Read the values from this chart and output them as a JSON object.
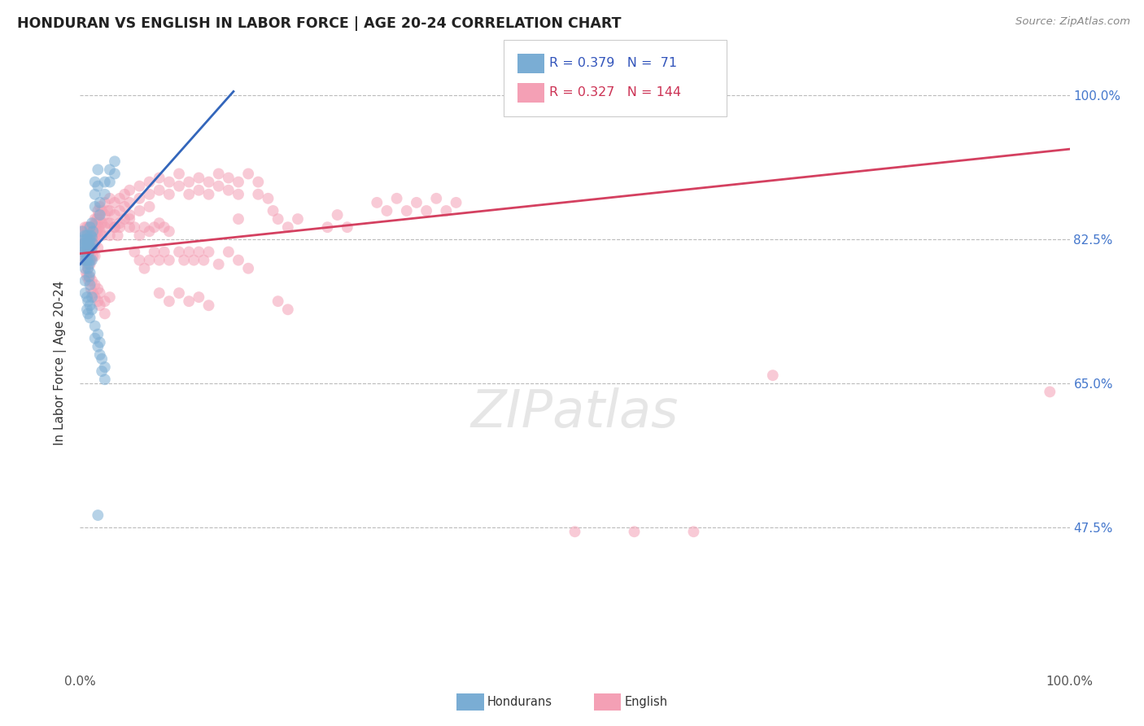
{
  "title": "HONDURAN VS ENGLISH IN LABOR FORCE | AGE 20-24 CORRELATION CHART",
  "source": "Source: ZipAtlas.com",
  "ylabel": "In Labor Force | Age 20-24",
  "xlim": [
    0.0,
    1.0
  ],
  "ylim": [
    0.3,
    1.05
  ],
  "ytick_vals": [
    0.475,
    0.65,
    0.825,
    1.0
  ],
  "ytick_labels": [
    "47.5%",
    "65.0%",
    "82.5%",
    "100.0%"
  ],
  "blue_R": 0.379,
  "blue_N": 71,
  "pink_R": 0.327,
  "pink_N": 144,
  "blue_color": "#7aadd4",
  "pink_color": "#f4a0b5",
  "blue_line_color": "#3366bb",
  "pink_line_color": "#d44060",
  "blue_line": [
    [
      0.0,
      0.795
    ],
    [
      0.155,
      1.005
    ]
  ],
  "pink_line": [
    [
      0.0,
      0.808
    ],
    [
      1.0,
      0.935
    ]
  ],
  "blue_scatter": [
    [
      0.002,
      0.835
    ],
    [
      0.003,
      0.82
    ],
    [
      0.003,
      0.81
    ],
    [
      0.004,
      0.825
    ],
    [
      0.004,
      0.815
    ],
    [
      0.004,
      0.8
    ],
    [
      0.005,
      0.83
    ],
    [
      0.005,
      0.82
    ],
    [
      0.005,
      0.81
    ],
    [
      0.006,
      0.825
    ],
    [
      0.006,
      0.815
    ],
    [
      0.006,
      0.8
    ],
    [
      0.007,
      0.83
    ],
    [
      0.007,
      0.82
    ],
    [
      0.007,
      0.81
    ],
    [
      0.007,
      0.8
    ],
    [
      0.008,
      0.825
    ],
    [
      0.008,
      0.815
    ],
    [
      0.008,
      0.8
    ],
    [
      0.008,
      0.79
    ],
    [
      0.009,
      0.82
    ],
    [
      0.009,
      0.81
    ],
    [
      0.009,
      0.795
    ],
    [
      0.009,
      0.78
    ],
    [
      0.01,
      0.84
    ],
    [
      0.01,
      0.825
    ],
    [
      0.01,
      0.815
    ],
    [
      0.01,
      0.8
    ],
    [
      0.01,
      0.785
    ],
    [
      0.01,
      0.77
    ],
    [
      0.011,
      0.83
    ],
    [
      0.011,
      0.815
    ],
    [
      0.012,
      0.845
    ],
    [
      0.012,
      0.828
    ],
    [
      0.012,
      0.815
    ],
    [
      0.012,
      0.8
    ],
    [
      0.013,
      0.835
    ],
    [
      0.013,
      0.82
    ],
    [
      0.015,
      0.895
    ],
    [
      0.015,
      0.88
    ],
    [
      0.015,
      0.865
    ],
    [
      0.018,
      0.91
    ],
    [
      0.018,
      0.89
    ],
    [
      0.02,
      0.855
    ],
    [
      0.02,
      0.87
    ],
    [
      0.025,
      0.895
    ],
    [
      0.025,
      0.88
    ],
    [
      0.03,
      0.91
    ],
    [
      0.03,
      0.895
    ],
    [
      0.035,
      0.92
    ],
    [
      0.035,
      0.905
    ],
    [
      0.005,
      0.79
    ],
    [
      0.005,
      0.775
    ],
    [
      0.005,
      0.76
    ],
    [
      0.007,
      0.755
    ],
    [
      0.007,
      0.74
    ],
    [
      0.008,
      0.75
    ],
    [
      0.008,
      0.735
    ],
    [
      0.01,
      0.745
    ],
    [
      0.01,
      0.73
    ],
    [
      0.012,
      0.755
    ],
    [
      0.012,
      0.74
    ],
    [
      0.015,
      0.72
    ],
    [
      0.015,
      0.705
    ],
    [
      0.018,
      0.71
    ],
    [
      0.018,
      0.695
    ],
    [
      0.02,
      0.7
    ],
    [
      0.02,
      0.685
    ],
    [
      0.022,
      0.68
    ],
    [
      0.022,
      0.665
    ],
    [
      0.025,
      0.67
    ],
    [
      0.025,
      0.655
    ],
    [
      0.018,
      0.49
    ]
  ],
  "pink_scatter": [
    [
      0.003,
      0.835
    ],
    [
      0.004,
      0.82
    ],
    [
      0.004,
      0.81
    ],
    [
      0.005,
      0.84
    ],
    [
      0.005,
      0.825
    ],
    [
      0.005,
      0.81
    ],
    [
      0.006,
      0.835
    ],
    [
      0.006,
      0.82
    ],
    [
      0.006,
      0.805
    ],
    [
      0.007,
      0.84
    ],
    [
      0.007,
      0.825
    ],
    [
      0.007,
      0.81
    ],
    [
      0.007,
      0.795
    ],
    [
      0.008,
      0.835
    ],
    [
      0.008,
      0.82
    ],
    [
      0.008,
      0.805
    ],
    [
      0.009,
      0.84
    ],
    [
      0.009,
      0.825
    ],
    [
      0.009,
      0.81
    ],
    [
      0.01,
      0.84
    ],
    [
      0.01,
      0.825
    ],
    [
      0.01,
      0.81
    ],
    [
      0.01,
      0.795
    ],
    [
      0.011,
      0.835
    ],
    [
      0.011,
      0.82
    ],
    [
      0.011,
      0.8
    ],
    [
      0.012,
      0.84
    ],
    [
      0.012,
      0.825
    ],
    [
      0.012,
      0.81
    ],
    [
      0.013,
      0.835
    ],
    [
      0.013,
      0.82
    ],
    [
      0.013,
      0.805
    ],
    [
      0.014,
      0.84
    ],
    [
      0.014,
      0.825
    ],
    [
      0.015,
      0.85
    ],
    [
      0.015,
      0.835
    ],
    [
      0.015,
      0.82
    ],
    [
      0.015,
      0.805
    ],
    [
      0.016,
      0.845
    ],
    [
      0.016,
      0.83
    ],
    [
      0.017,
      0.85
    ],
    [
      0.017,
      0.835
    ],
    [
      0.018,
      0.86
    ],
    [
      0.018,
      0.845
    ],
    [
      0.018,
      0.83
    ],
    [
      0.018,
      0.815
    ],
    [
      0.019,
      0.855
    ],
    [
      0.019,
      0.84
    ],
    [
      0.02,
      0.865
    ],
    [
      0.02,
      0.85
    ],
    [
      0.02,
      0.835
    ],
    [
      0.022,
      0.86
    ],
    [
      0.022,
      0.845
    ],
    [
      0.022,
      0.83
    ],
    [
      0.025,
      0.87
    ],
    [
      0.025,
      0.855
    ],
    [
      0.025,
      0.84
    ],
    [
      0.028,
      0.86
    ],
    [
      0.028,
      0.845
    ],
    [
      0.03,
      0.875
    ],
    [
      0.03,
      0.86
    ],
    [
      0.03,
      0.845
    ],
    [
      0.03,
      0.83
    ],
    [
      0.035,
      0.87
    ],
    [
      0.035,
      0.855
    ],
    [
      0.035,
      0.84
    ],
    [
      0.04,
      0.875
    ],
    [
      0.04,
      0.86
    ],
    [
      0.04,
      0.845
    ],
    [
      0.045,
      0.88
    ],
    [
      0.045,
      0.865
    ],
    [
      0.045,
      0.85
    ],
    [
      0.05,
      0.885
    ],
    [
      0.05,
      0.87
    ],
    [
      0.05,
      0.855
    ],
    [
      0.05,
      0.84
    ],
    [
      0.06,
      0.89
    ],
    [
      0.06,
      0.875
    ],
    [
      0.06,
      0.86
    ],
    [
      0.07,
      0.895
    ],
    [
      0.07,
      0.88
    ],
    [
      0.07,
      0.865
    ],
    [
      0.08,
      0.9
    ],
    [
      0.08,
      0.885
    ],
    [
      0.09,
      0.895
    ],
    [
      0.09,
      0.88
    ],
    [
      0.1,
      0.905
    ],
    [
      0.1,
      0.89
    ],
    [
      0.11,
      0.895
    ],
    [
      0.11,
      0.88
    ],
    [
      0.12,
      0.9
    ],
    [
      0.12,
      0.885
    ],
    [
      0.13,
      0.895
    ],
    [
      0.13,
      0.88
    ],
    [
      0.14,
      0.905
    ],
    [
      0.14,
      0.89
    ],
    [
      0.15,
      0.9
    ],
    [
      0.15,
      0.885
    ],
    [
      0.16,
      0.895
    ],
    [
      0.16,
      0.88
    ],
    [
      0.17,
      0.905
    ],
    [
      0.18,
      0.895
    ],
    [
      0.18,
      0.88
    ],
    [
      0.005,
      0.8
    ],
    [
      0.006,
      0.785
    ],
    [
      0.007,
      0.78
    ],
    [
      0.008,
      0.79
    ],
    [
      0.009,
      0.775
    ],
    [
      0.01,
      0.78
    ],
    [
      0.011,
      0.765
    ],
    [
      0.012,
      0.775
    ],
    [
      0.013,
      0.76
    ],
    [
      0.015,
      0.77
    ],
    [
      0.015,
      0.755
    ],
    [
      0.018,
      0.765
    ],
    [
      0.018,
      0.75
    ],
    [
      0.02,
      0.76
    ],
    [
      0.02,
      0.745
    ],
    [
      0.025,
      0.75
    ],
    [
      0.025,
      0.735
    ],
    [
      0.03,
      0.755
    ],
    [
      0.035,
      0.84
    ],
    [
      0.038,
      0.83
    ],
    [
      0.04,
      0.84
    ],
    [
      0.05,
      0.85
    ],
    [
      0.055,
      0.84
    ],
    [
      0.06,
      0.83
    ],
    [
      0.065,
      0.84
    ],
    [
      0.07,
      0.835
    ],
    [
      0.075,
      0.84
    ],
    [
      0.08,
      0.845
    ],
    [
      0.085,
      0.84
    ],
    [
      0.09,
      0.835
    ],
    [
      0.3,
      0.87
    ],
    [
      0.31,
      0.86
    ],
    [
      0.32,
      0.875
    ],
    [
      0.33,
      0.86
    ],
    [
      0.34,
      0.87
    ],
    [
      0.35,
      0.86
    ],
    [
      0.36,
      0.875
    ],
    [
      0.37,
      0.86
    ],
    [
      0.38,
      0.87
    ],
    [
      0.25,
      0.84
    ],
    [
      0.26,
      0.855
    ],
    [
      0.27,
      0.84
    ],
    [
      0.2,
      0.85
    ],
    [
      0.21,
      0.84
    ],
    [
      0.22,
      0.85
    ],
    [
      0.19,
      0.875
    ],
    [
      0.195,
      0.86
    ],
    [
      0.16,
      0.85
    ],
    [
      0.055,
      0.81
    ],
    [
      0.06,
      0.8
    ],
    [
      0.065,
      0.79
    ],
    [
      0.07,
      0.8
    ],
    [
      0.075,
      0.81
    ],
    [
      0.08,
      0.8
    ],
    [
      0.085,
      0.81
    ],
    [
      0.09,
      0.8
    ],
    [
      0.1,
      0.81
    ],
    [
      0.105,
      0.8
    ],
    [
      0.11,
      0.81
    ],
    [
      0.115,
      0.8
    ],
    [
      0.12,
      0.81
    ],
    [
      0.125,
      0.8
    ],
    [
      0.13,
      0.81
    ],
    [
      0.14,
      0.795
    ],
    [
      0.15,
      0.81
    ],
    [
      0.16,
      0.8
    ],
    [
      0.17,
      0.79
    ],
    [
      0.08,
      0.76
    ],
    [
      0.09,
      0.75
    ],
    [
      0.1,
      0.76
    ],
    [
      0.11,
      0.75
    ],
    [
      0.12,
      0.755
    ],
    [
      0.13,
      0.745
    ],
    [
      0.2,
      0.75
    ],
    [
      0.21,
      0.74
    ],
    [
      0.7,
      0.66
    ],
    [
      0.5,
      0.47
    ],
    [
      0.56,
      0.47
    ],
    [
      0.62,
      0.47
    ],
    [
      0.98,
      0.64
    ]
  ]
}
